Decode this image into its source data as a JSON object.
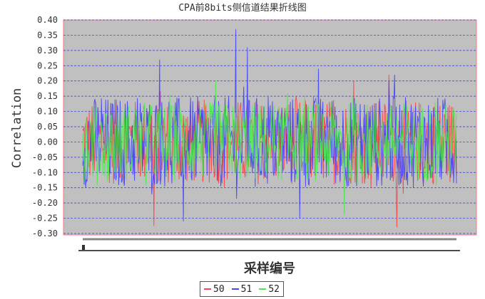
{
  "chart_data": {
    "type": "line",
    "title": "CPA前8bits侧信道结果折线图",
    "xlabel": "采样编号",
    "ylabel": "Correlation",
    "ylim": [
      -0.3,
      0.4
    ],
    "yticks": [
      "0.40",
      "0.35",
      "0.30",
      "0.25",
      "0.20",
      "0.15",
      "0.10",
      "0.05",
      "0.00",
      "-0.05",
      "-0.10",
      "-0.15",
      "-0.20",
      "-0.25",
      "-0.30"
    ],
    "x_range": [
      0,
      1000
    ],
    "grid": true,
    "legend_position": "bottom",
    "series": [
      {
        "name": "50",
        "color": "#ff4444",
        "noise_amplitude": 0.14,
        "extreme_values": [
          [
            190,
            -0.275
          ],
          [
            840,
            -0.28
          ],
          [
            725,
            0.2
          ],
          [
            820,
            0.22
          ]
        ]
      },
      {
        "name": "51",
        "color": "#4444ff",
        "noise_amplitude": 0.15,
        "extreme_values": [
          [
            205,
            0.27
          ],
          [
            410,
            0.37
          ],
          [
            440,
            0.31
          ],
          [
            630,
            0.24
          ],
          [
            820,
            0.2
          ],
          [
            835,
            0.22
          ],
          [
            270,
            -0.26
          ],
          [
            580,
            -0.25
          ]
        ]
      },
      {
        "name": "52",
        "color": "#44ee44",
        "noise_amplitude": 0.13,
        "extreme_values": [
          [
            355,
            0.2
          ],
          [
            700,
            -0.24
          ]
        ]
      }
    ]
  }
}
